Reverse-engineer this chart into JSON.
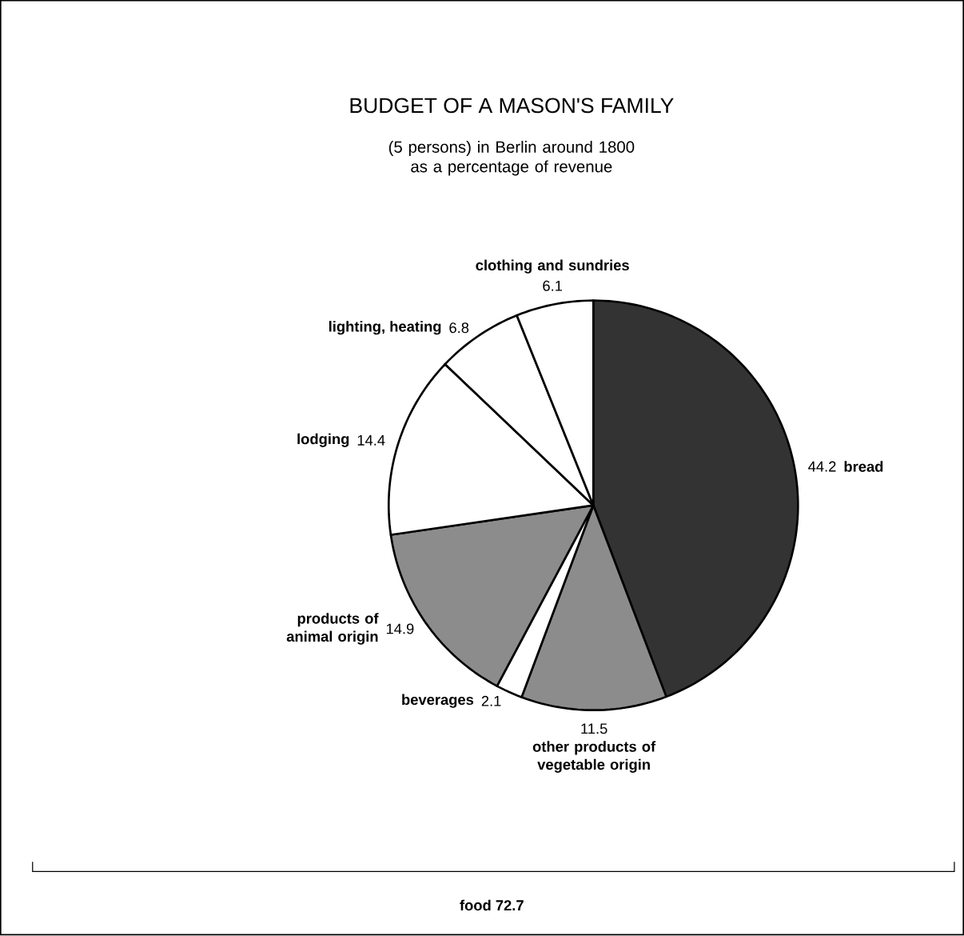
{
  "chart_data": {
    "type": "pie",
    "title": "BUDGET OF A MASON'S FAMILY",
    "subtitle": "(5 persons) in Berlin around 1800 as a percentage of revenue",
    "categories": [
      "bread",
      "other products of vegetable origin",
      "beverages",
      "products of animal origin",
      "lodging",
      "lighting, heating",
      "clothing and sundries"
    ],
    "values": [
      44.2,
      11.5,
      2.1,
      14.9,
      14.4,
      6.8,
      6.1
    ],
    "colors": [
      "#333333",
      "#8c8c8c",
      "#ffffff",
      "#8c8c8c",
      "#ffffff",
      "#ffffff",
      "#ffffff"
    ],
    "data_labels": true,
    "annotations": [
      "food 72.7"
    ]
  }
}
